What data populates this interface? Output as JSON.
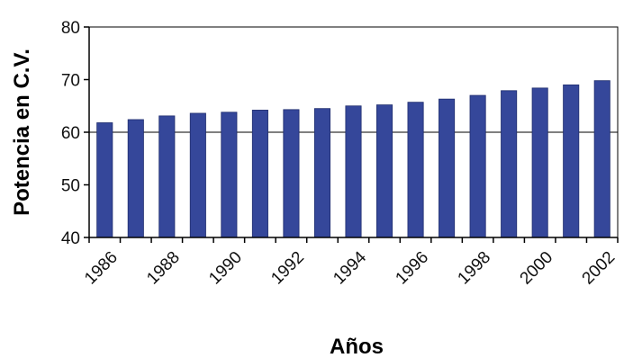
{
  "chart_data": {
    "type": "bar",
    "title": "",
    "xlabel": "Años",
    "ylabel": "Potencia en C.V.",
    "categories": [
      "1986",
      "1987",
      "1988",
      "1989",
      "1990",
      "1991",
      "1992",
      "1993",
      "1994",
      "1995",
      "1996",
      "1997",
      "1998",
      "1999",
      "2000",
      "2001",
      "2002"
    ],
    "x_tick_labels": [
      "1986",
      "1988",
      "1990",
      "1992",
      "1994",
      "1996",
      "1998",
      "2000",
      "2002"
    ],
    "y_ticks": [
      40,
      50,
      60,
      70,
      80
    ],
    "ylim": [
      40,
      80
    ],
    "values": [
      61.8,
      62.4,
      63.1,
      63.6,
      63.8,
      64.2,
      64.3,
      64.5,
      65.0,
      65.2,
      65.7,
      66.3,
      67.0,
      67.9,
      68.4,
      69.0,
      69.8
    ],
    "grid": "horizontal gridline at 60",
    "legend": "none",
    "colors": {
      "bar": "#35479a",
      "bar_edge": "#1f2d6e",
      "axis": "#000000",
      "grid": "#000000"
    }
  }
}
